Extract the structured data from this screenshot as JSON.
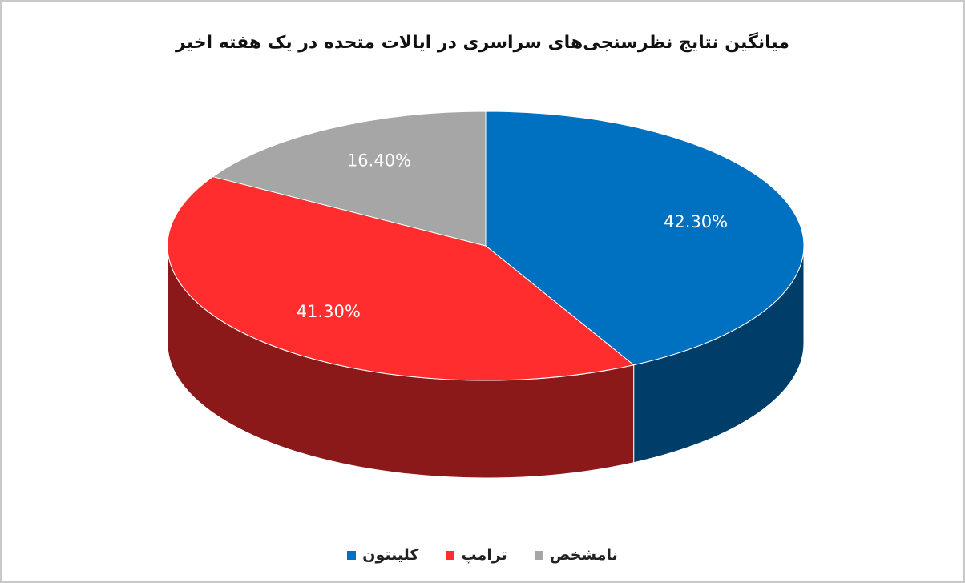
{
  "chart_data": {
    "type": "pie",
    "title": "میانگین نتایج نظرسنجی‌های سراسری در ایالات متحده در یک هفته اخیر",
    "categories": [
      "کلینتون",
      "ترامپ",
      "نامشخص"
    ],
    "values": [
      42.3,
      41.3,
      16.4
    ],
    "value_labels": [
      "42.30%",
      "41.30%",
      "16.40%"
    ],
    "colors": [
      "#0070c0",
      "#ff2d2d",
      "#a6a6a6"
    ]
  }
}
